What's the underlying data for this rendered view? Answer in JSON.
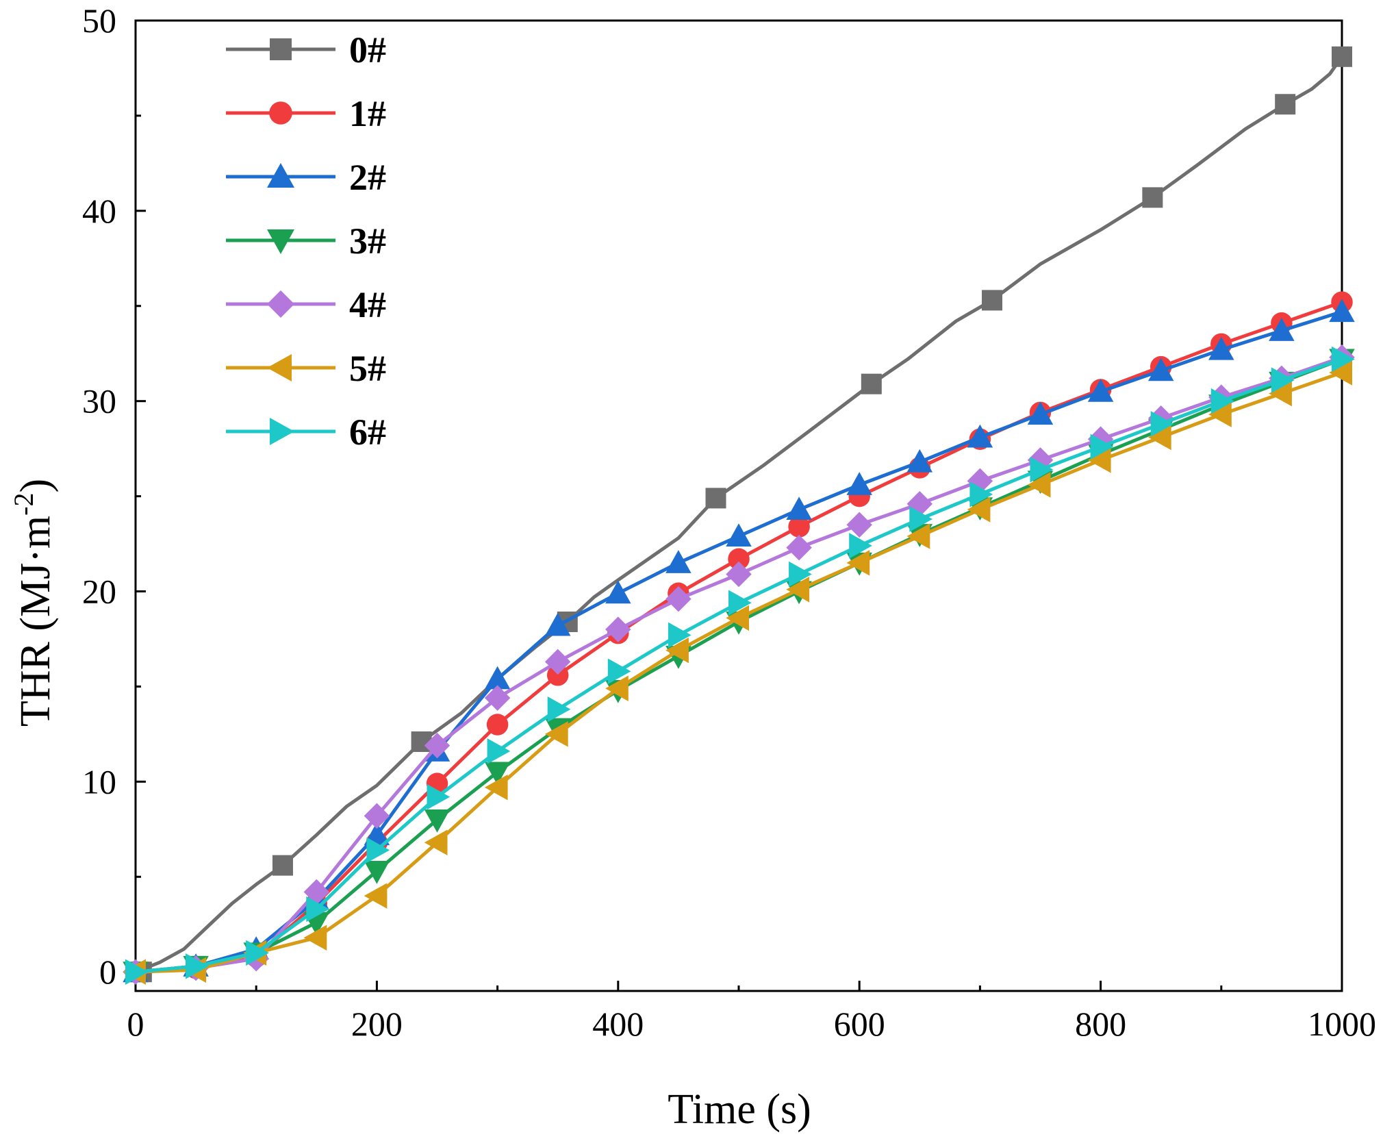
{
  "chart_data": {
    "type": "line",
    "title": "",
    "xlabel": "Time (s)",
    "ylabel": {
      "prefix": "THR (MJ·m",
      "superscript": "-2",
      "suffix": ")"
    },
    "xlim": [
      0,
      1000
    ],
    "ylim": [
      -1,
      50
    ],
    "xticks": [
      0,
      200,
      400,
      600,
      800,
      1000
    ],
    "xtick_labels": [
      "0",
      "200",
      "400",
      "600",
      "800",
      "1000"
    ],
    "yticks": [
      0,
      10,
      20,
      30,
      40,
      50
    ],
    "ytick_labels": [
      "0",
      "10",
      "20",
      "30",
      "40",
      "50"
    ],
    "legend_position": "top-left",
    "grid": false,
    "series": [
      {
        "name": "0#",
        "color": "#6e6e6e",
        "marker": "square",
        "line": [
          [
            0,
            0
          ],
          [
            20,
            0.5
          ],
          [
            40,
            1.2
          ],
          [
            60,
            2.4
          ],
          [
            80,
            3.6
          ],
          [
            100,
            4.6
          ],
          [
            122,
            5.6
          ],
          [
            150,
            7.2
          ],
          [
            175,
            8.7
          ],
          [
            200,
            9.8
          ],
          [
            237,
            12.1
          ],
          [
            270,
            13.6
          ],
          [
            300,
            15.4
          ],
          [
            330,
            17.0
          ],
          [
            358,
            18.4
          ],
          [
            380,
            19.7
          ],
          [
            400,
            20.6
          ],
          [
            450,
            22.8
          ],
          [
            481,
            24.9
          ],
          [
            520,
            26.6
          ],
          [
            560,
            28.5
          ],
          [
            610,
            30.9
          ],
          [
            640,
            32.2
          ],
          [
            680,
            34.2
          ],
          [
            710,
            35.3
          ],
          [
            750,
            37.2
          ],
          [
            800,
            39.0
          ],
          [
            843,
            40.7
          ],
          [
            880,
            42.4
          ],
          [
            920,
            44.3
          ],
          [
            953,
            45.6
          ],
          [
            975,
            46.4
          ],
          [
            990,
            47.2
          ],
          [
            1000,
            48.1
          ]
        ],
        "markers": [
          [
            5,
            0
          ],
          [
            50,
            0.3
          ],
          [
            122,
            5.6
          ],
          [
            237,
            12.1
          ],
          [
            358,
            18.4
          ],
          [
            481,
            24.9
          ],
          [
            610,
            30.9
          ],
          [
            710,
            35.3
          ],
          [
            843,
            40.7
          ],
          [
            953,
            45.6
          ],
          [
            1000,
            48.1
          ]
        ]
      },
      {
        "name": "1#",
        "color": "#f03c3c",
        "marker": "circle",
        "line": [
          [
            0,
            0
          ],
          [
            50,
            0.2
          ],
          [
            100,
            0.8
          ],
          [
            150,
            3.6
          ],
          [
            200,
            6.8
          ],
          [
            250,
            9.9
          ],
          [
            300,
            13.0
          ],
          [
            350,
            15.6
          ],
          [
            400,
            17.8
          ],
          [
            450,
            19.9
          ],
          [
            500,
            21.7
          ],
          [
            550,
            23.4
          ],
          [
            600,
            25.0
          ],
          [
            650,
            26.5
          ],
          [
            700,
            28.0
          ],
          [
            750,
            29.4
          ],
          [
            800,
            30.6
          ],
          [
            850,
            31.8
          ],
          [
            900,
            33.0
          ],
          [
            950,
            34.1
          ],
          [
            1000,
            35.2
          ]
        ],
        "markers": [
          [
            0,
            0
          ],
          [
            50,
            0.2
          ],
          [
            100,
            0.8
          ],
          [
            150,
            3.6
          ],
          [
            200,
            6.8
          ],
          [
            250,
            9.9
          ],
          [
            300,
            13.0
          ],
          [
            350,
            15.6
          ],
          [
            400,
            17.8
          ],
          [
            450,
            19.9
          ],
          [
            500,
            21.7
          ],
          [
            550,
            23.4
          ],
          [
            600,
            25.0
          ],
          [
            650,
            26.5
          ],
          [
            700,
            28.0
          ],
          [
            750,
            29.4
          ],
          [
            800,
            30.6
          ],
          [
            850,
            31.8
          ],
          [
            900,
            33.0
          ],
          [
            950,
            34.1
          ],
          [
            1000,
            35.2
          ]
        ]
      },
      {
        "name": "2#",
        "color": "#1e6ed2",
        "marker": "triangle-up",
        "line": [
          [
            0,
            0
          ],
          [
            50,
            0.3
          ],
          [
            100,
            1.2
          ],
          [
            150,
            3.8
          ],
          [
            200,
            7.2
          ],
          [
            250,
            11.6
          ],
          [
            300,
            15.4
          ],
          [
            350,
            18.2
          ],
          [
            400,
            19.9
          ],
          [
            450,
            21.5
          ],
          [
            500,
            22.9
          ],
          [
            550,
            24.3
          ],
          [
            600,
            25.6
          ],
          [
            650,
            26.8
          ],
          [
            700,
            28.1
          ],
          [
            750,
            29.3
          ],
          [
            800,
            30.5
          ],
          [
            850,
            31.6
          ],
          [
            900,
            32.7
          ],
          [
            950,
            33.7
          ],
          [
            1000,
            34.7
          ]
        ],
        "markers": [
          [
            0,
            0
          ],
          [
            50,
            0.3
          ],
          [
            100,
            1.2
          ],
          [
            150,
            3.8
          ],
          [
            200,
            7.2
          ],
          [
            250,
            11.6
          ],
          [
            300,
            15.4
          ],
          [
            350,
            18.2
          ],
          [
            400,
            19.9
          ],
          [
            450,
            21.5
          ],
          [
            500,
            22.9
          ],
          [
            550,
            24.3
          ],
          [
            600,
            25.6
          ],
          [
            650,
            26.8
          ],
          [
            700,
            28.1
          ],
          [
            750,
            29.3
          ],
          [
            800,
            30.5
          ],
          [
            850,
            31.6
          ],
          [
            900,
            32.7
          ],
          [
            950,
            33.7
          ],
          [
            1000,
            34.7
          ]
        ]
      },
      {
        "name": "3#",
        "color": "#1aa050",
        "marker": "triangle-down",
        "line": [
          [
            0,
            0
          ],
          [
            50,
            0.3
          ],
          [
            100,
            1.0
          ],
          [
            150,
            2.6
          ],
          [
            200,
            5.3
          ],
          [
            250,
            8.0
          ],
          [
            300,
            10.5
          ],
          [
            350,
            12.8
          ],
          [
            400,
            14.8
          ],
          [
            450,
            16.6
          ],
          [
            500,
            18.4
          ],
          [
            550,
            20.0
          ],
          [
            600,
            21.5
          ],
          [
            650,
            23.0
          ],
          [
            700,
            24.4
          ],
          [
            750,
            25.8
          ],
          [
            800,
            27.2
          ],
          [
            850,
            28.5
          ],
          [
            900,
            29.8
          ],
          [
            950,
            31.0
          ],
          [
            1000,
            32.2
          ]
        ],
        "markers": [
          [
            0,
            0
          ],
          [
            50,
            0.3
          ],
          [
            100,
            1.0
          ],
          [
            150,
            2.6
          ],
          [
            200,
            5.3
          ],
          [
            250,
            8.0
          ],
          [
            300,
            10.5
          ],
          [
            350,
            12.8
          ],
          [
            400,
            14.8
          ],
          [
            450,
            16.6
          ],
          [
            500,
            18.4
          ],
          [
            550,
            20.0
          ],
          [
            600,
            21.5
          ],
          [
            650,
            23.0
          ],
          [
            700,
            24.4
          ],
          [
            750,
            25.8
          ],
          [
            800,
            27.2
          ],
          [
            850,
            28.5
          ],
          [
            900,
            29.8
          ],
          [
            950,
            31.0
          ],
          [
            1000,
            32.2
          ]
        ]
      },
      {
        "name": "4#",
        "color": "#b478dc",
        "marker": "diamond",
        "line": [
          [
            0,
            0
          ],
          [
            50,
            0.2
          ],
          [
            100,
            0.7
          ],
          [
            150,
            4.2
          ],
          [
            200,
            8.2
          ],
          [
            250,
            11.9
          ],
          [
            300,
            14.4
          ],
          [
            350,
            16.3
          ],
          [
            400,
            18.0
          ],
          [
            450,
            19.6
          ],
          [
            500,
            20.9
          ],
          [
            550,
            22.3
          ],
          [
            600,
            23.5
          ],
          [
            650,
            24.6
          ],
          [
            700,
            25.8
          ],
          [
            750,
            26.9
          ],
          [
            800,
            28.0
          ],
          [
            850,
            29.1
          ],
          [
            900,
            30.2
          ],
          [
            950,
            31.2
          ],
          [
            1000,
            32.3
          ]
        ],
        "markers": [
          [
            0,
            0
          ],
          [
            50,
            0.2
          ],
          [
            100,
            0.7
          ],
          [
            150,
            4.2
          ],
          [
            200,
            8.2
          ],
          [
            250,
            11.9
          ],
          [
            300,
            14.4
          ],
          [
            350,
            16.3
          ],
          [
            400,
            18.0
          ],
          [
            450,
            19.6
          ],
          [
            500,
            20.9
          ],
          [
            550,
            22.3
          ],
          [
            600,
            23.5
          ],
          [
            650,
            24.6
          ],
          [
            700,
            25.8
          ],
          [
            750,
            26.9
          ],
          [
            800,
            28.0
          ],
          [
            850,
            29.1
          ],
          [
            900,
            30.2
          ],
          [
            950,
            31.2
          ],
          [
            1000,
            32.3
          ]
        ]
      },
      {
        "name": "5#",
        "color": "#d79c14",
        "marker": "triangle-left",
        "line": [
          [
            0,
            0
          ],
          [
            50,
            0.1
          ],
          [
            100,
            1.0
          ],
          [
            150,
            1.8
          ],
          [
            200,
            4.0
          ],
          [
            250,
            6.8
          ],
          [
            300,
            9.7
          ],
          [
            350,
            12.5
          ],
          [
            400,
            14.9
          ],
          [
            450,
            16.9
          ],
          [
            500,
            18.6
          ],
          [
            550,
            20.1
          ],
          [
            600,
            21.5
          ],
          [
            650,
            22.9
          ],
          [
            700,
            24.3
          ],
          [
            750,
            25.6
          ],
          [
            800,
            26.9
          ],
          [
            850,
            28.1
          ],
          [
            900,
            29.3
          ],
          [
            950,
            30.4
          ],
          [
            1000,
            31.5
          ]
        ],
        "markers": [
          [
            0,
            0
          ],
          [
            50,
            0.1
          ],
          [
            100,
            1.0
          ],
          [
            150,
            1.8
          ],
          [
            200,
            4.0
          ],
          [
            250,
            6.8
          ],
          [
            300,
            9.7
          ],
          [
            350,
            12.5
          ],
          [
            400,
            14.9
          ],
          [
            450,
            16.9
          ],
          [
            500,
            18.6
          ],
          [
            550,
            20.1
          ],
          [
            600,
            21.5
          ],
          [
            650,
            22.9
          ],
          [
            700,
            24.3
          ],
          [
            750,
            25.6
          ],
          [
            800,
            26.9
          ],
          [
            850,
            28.1
          ],
          [
            900,
            29.3
          ],
          [
            950,
            30.4
          ],
          [
            1000,
            31.5
          ]
        ]
      },
      {
        "name": "6#",
        "color": "#1ec8c8",
        "marker": "triangle-right",
        "line": [
          [
            0,
            0
          ],
          [
            50,
            0.3
          ],
          [
            100,
            1.0
          ],
          [
            150,
            3.3
          ],
          [
            200,
            6.4
          ],
          [
            250,
            9.2
          ],
          [
            300,
            11.6
          ],
          [
            350,
            13.8
          ],
          [
            400,
            15.8
          ],
          [
            450,
            17.7
          ],
          [
            500,
            19.4
          ],
          [
            550,
            20.9
          ],
          [
            600,
            22.4
          ],
          [
            650,
            23.8
          ],
          [
            700,
            25.1
          ],
          [
            750,
            26.4
          ],
          [
            800,
            27.6
          ],
          [
            850,
            28.8
          ],
          [
            900,
            30.0
          ],
          [
            950,
            31.1
          ],
          [
            1000,
            32.2
          ]
        ],
        "markers": [
          [
            0,
            0
          ],
          [
            50,
            0.3
          ],
          [
            100,
            1.0
          ],
          [
            150,
            3.3
          ],
          [
            200,
            6.4
          ],
          [
            250,
            9.2
          ],
          [
            300,
            11.6
          ],
          [
            350,
            13.8
          ],
          [
            400,
            15.8
          ],
          [
            450,
            17.7
          ],
          [
            500,
            19.4
          ],
          [
            550,
            20.9
          ],
          [
            600,
            22.4
          ],
          [
            650,
            23.8
          ],
          [
            700,
            25.1
          ],
          [
            750,
            26.4
          ],
          [
            800,
            27.6
          ],
          [
            850,
            28.8
          ],
          [
            900,
            30.0
          ],
          [
            950,
            31.1
          ],
          [
            1000,
            32.2
          ]
        ]
      }
    ]
  }
}
